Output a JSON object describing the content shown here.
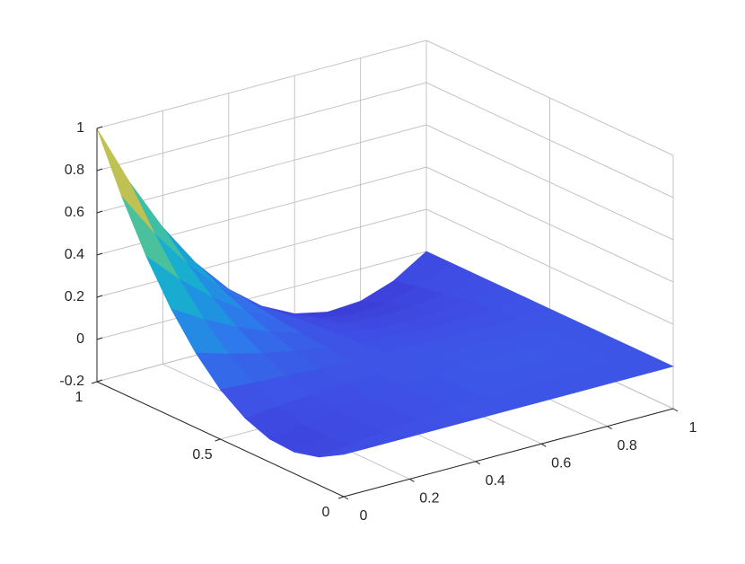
{
  "chart_data": {
    "type": "surface",
    "x": [
      0,
      0.1,
      0.2,
      0.3,
      0.4,
      0.5,
      0.6,
      0.7,
      0.8,
      0.9,
      1
    ],
    "y": [
      0,
      0.1,
      0.2,
      0.3,
      0.4,
      0.5,
      0.6,
      0.7,
      0.8,
      0.9,
      1
    ],
    "z": [
      [
        0,
        0,
        0,
        0,
        0,
        0,
        0,
        0,
        0,
        0,
        0
      ],
      [
        -0.067,
        -0.047,
        -0.03,
        -0.016,
        -0.005,
        0.003,
        0.009,
        0.011,
        0.01,
        0.007,
        0
      ],
      [
        -0.098,
        -0.069,
        -0.044,
        -0.023,
        -0.007,
        0.005,
        0.012,
        0.016,
        0.015,
        0.01,
        0
      ],
      [
        -0.091,
        -0.064,
        -0.041,
        -0.022,
        -0.007,
        0.005,
        0.012,
        0.015,
        0.014,
        0.009,
        0
      ],
      [
        -0.046,
        -0.033,
        -0.021,
        -0.011,
        -0.003,
        0.002,
        0.006,
        0.008,
        0.007,
        0.005,
        0
      ],
      [
        0.035,
        0.025,
        0.016,
        0.008,
        0.003,
        -0.002,
        -0.004,
        -0.006,
        -0.005,
        -0.003,
        0
      ],
      [
        0.154,
        0.108,
        0.069,
        0.037,
        0.011,
        -0.008,
        -0.02,
        -0.025,
        -0.023,
        -0.015,
        0
      ],
      [
        0.309,
        0.217,
        0.139,
        0.074,
        0.022,
        -0.015,
        -0.04,
        -0.05,
        -0.047,
        -0.03,
        0
      ],
      [
        0.502,
        0.353,
        0.225,
        0.12,
        0.036,
        -0.025,
        -0.064,
        -0.081,
        -0.076,
        -0.049,
        0
      ],
      [
        0.733,
        0.514,
        0.328,
        0.174,
        0.053,
        -0.037,
        -0.094,
        -0.119,
        -0.111,
        -0.072,
        0
      ],
      [
        1,
        0.702,
        0.448,
        0.238,
        0.072,
        -0.05,
        -0.128,
        -0.162,
        -0.152,
        -0.098,
        0
      ]
    ],
    "xlim": [
      0,
      1
    ],
    "ylim": [
      0,
      1
    ],
    "zlim": [
      -0.2,
      1
    ],
    "xticks": [
      0,
      0.2,
      0.4,
      0.6,
      0.8,
      1
    ],
    "yticks": [
      0,
      0.5,
      1
    ],
    "zticks": [
      -0.2,
      0,
      0.2,
      0.4,
      0.6,
      0.8,
      1
    ],
    "grid": true,
    "colormap": [
      "#3b3bd4",
      "#3f4fe6",
      "#2f78ec",
      "#1a9edc",
      "#18b8c4",
      "#5cc48e",
      "#b4c258",
      "#f0bd3a",
      "#f9d833"
    ]
  }
}
